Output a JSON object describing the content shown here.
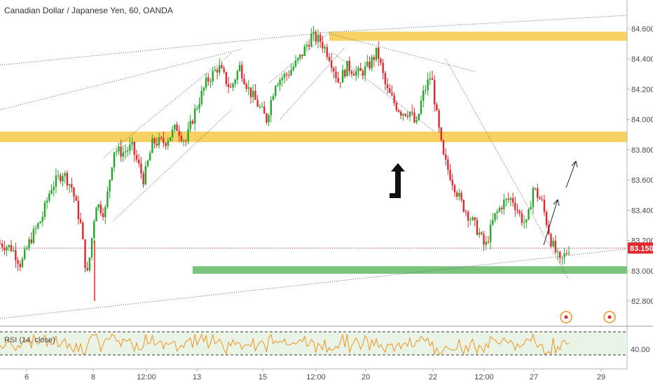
{
  "header": {
    "title": "Canadian Dollar / Japanese Yen, 60, OANDA"
  },
  "rsi": {
    "label": "RSI (14, close)",
    "level_label": "40.00"
  },
  "price": {
    "last_label": "83.150",
    "last_value": 83.15
  },
  "colors": {
    "up": "#22a82a",
    "down": "#e0282e",
    "zone_yellow": "#f7c948",
    "zone_green": "#4caf50",
    "price_line": "#e0282e",
    "rsi_line": "#f0931e",
    "event_marker": "#f0931e"
  },
  "chart_data": {
    "type": "candlestick",
    "title": "Canadian Dollar / Japanese Yen, 60, OANDA",
    "ylim": [
      82.65,
      84.7
    ],
    "y_ticks": [
      "84.600",
      "84.400",
      "84.200",
      "84.000",
      "83.800",
      "83.600",
      "83.400",
      "83.200",
      "83.000",
      "82.800"
    ],
    "x_ticks": [
      "6",
      "8",
      "12:00",
      "13",
      "15",
      "12:00",
      "20",
      "22",
      "12:00",
      "27",
      "29"
    ],
    "close_path": [
      [
        0,
        83.18
      ],
      [
        0.02,
        83.15
      ],
      [
        0.035,
        83.04
      ],
      [
        0.05,
        83.2
      ],
      [
        0.07,
        83.35
      ],
      [
        0.085,
        83.55
      ],
      [
        0.105,
        83.65
      ],
      [
        0.12,
        83.55
      ],
      [
        0.135,
        83.3
      ],
      [
        0.145,
        82.95
      ],
      [
        0.15,
        83.1
      ],
      [
        0.16,
        83.45
      ],
      [
        0.175,
        83.38
      ],
      [
        0.19,
        83.8
      ],
      [
        0.205,
        83.78
      ],
      [
        0.22,
        83.82
      ],
      [
        0.24,
        83.6
      ],
      [
        0.255,
        83.85
      ],
      [
        0.275,
        83.85
      ],
      [
        0.295,
        83.95
      ],
      [
        0.31,
        83.85
      ],
      [
        0.325,
        84.05
      ],
      [
        0.345,
        84.25
      ],
      [
        0.365,
        84.35
      ],
      [
        0.385,
        84.2
      ],
      [
        0.4,
        84.35
      ],
      [
        0.415,
        84.2
      ],
      [
        0.43,
        84.1
      ],
      [
        0.445,
        84.0
      ],
      [
        0.46,
        84.25
      ],
      [
        0.48,
        84.3
      ],
      [
        0.5,
        84.4
      ],
      [
        0.52,
        84.55
      ],
      [
        0.535,
        84.52
      ],
      [
        0.55,
        84.42
      ],
      [
        0.565,
        84.25
      ],
      [
        0.58,
        84.35
      ],
      [
        0.6,
        84.3
      ],
      [
        0.615,
        84.35
      ],
      [
        0.63,
        84.45
      ],
      [
        0.645,
        84.2
      ],
      [
        0.66,
        84.1
      ],
      [
        0.67,
        84.05
      ],
      [
        0.685,
        84.05
      ],
      [
        0.695,
        83.95
      ],
      [
        0.705,
        84.15
      ],
      [
        0.72,
        84.3
      ],
      [
        0.73,
        84.0
      ],
      [
        0.74,
        83.75
      ],
      [
        0.755,
        83.6
      ],
      [
        0.77,
        83.45
      ],
      [
        0.785,
        83.35
      ],
      [
        0.8,
        83.25
      ],
      [
        0.81,
        83.15
      ],
      [
        0.825,
        83.35
      ],
      [
        0.84,
        83.45
      ],
      [
        0.855,
        83.48
      ],
      [
        0.87,
        83.35
      ],
      [
        0.88,
        83.3
      ],
      [
        0.89,
        83.55
      ],
      [
        0.905,
        83.45
      ],
      [
        0.92,
        83.2
      ],
      [
        0.935,
        83.05
      ],
      [
        0.95,
        83.15
      ]
    ],
    "zones": [
      {
        "name": "resistance",
        "color": "yellow",
        "from": 84.52,
        "to": 84.58
      },
      {
        "name": "mid",
        "color": "yellow",
        "from": 83.85,
        "to": 83.92
      },
      {
        "name": "support",
        "color": "green",
        "from": 82.98,
        "to": 83.03
      }
    ],
    "rsi_level": 40.0,
    "legend": "none",
    "grid": false
  }
}
